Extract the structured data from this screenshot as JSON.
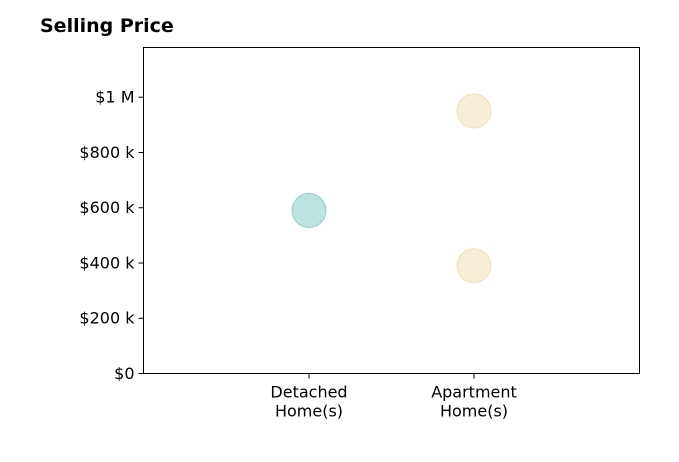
{
  "chart_data": {
    "type": "scatter",
    "title": "Selling Price",
    "categories": [
      "Detached\nHome(s)",
      "Apartment\nHome(s)"
    ],
    "xlabel": "",
    "ylabel": "",
    "ylim": [
      0,
      1180000
    ],
    "yticks": [
      {
        "value": 0,
        "label": "$0"
      },
      {
        "value": 200000,
        "label": "$200 k"
      },
      {
        "value": 400000,
        "label": "$400 k"
      },
      {
        "value": 600000,
        "label": "$600 k"
      },
      {
        "value": 800000,
        "label": "$800 k"
      },
      {
        "value": 1000000,
        "label": "$1 M"
      }
    ],
    "grid": false,
    "legend": "none",
    "points": [
      {
        "category": "Detached\nHome(s)",
        "value": 590000,
        "color": "#b2dedc",
        "edge": "#93cfcb"
      },
      {
        "category": "Apartment\nHome(s)",
        "value": 950000,
        "color": "#f7ead0",
        "edge": "#f1dfb9"
      },
      {
        "category": "Apartment\nHome(s)",
        "value": 390000,
        "color": "#f7ead0",
        "edge": "#f1dfb9"
      }
    ]
  }
}
